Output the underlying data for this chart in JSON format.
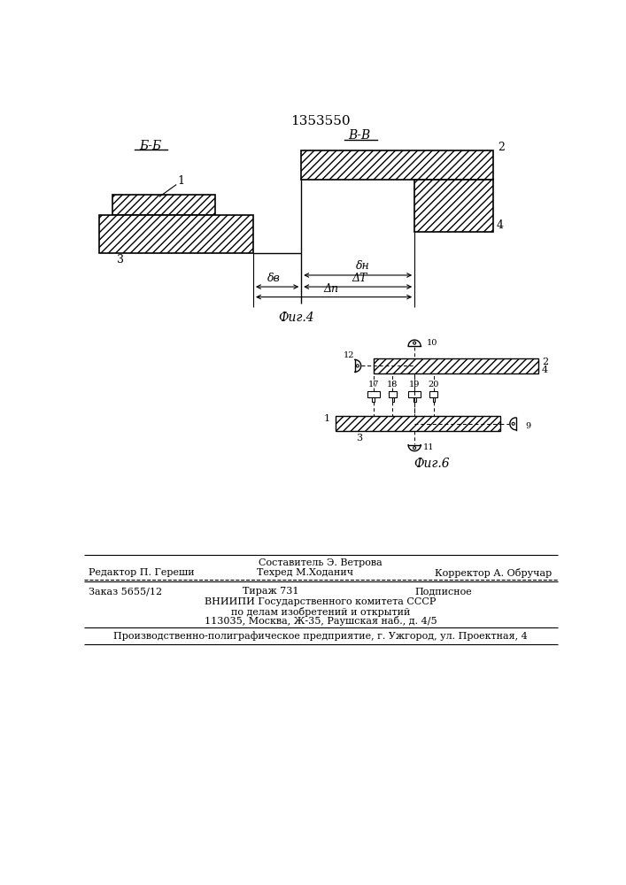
{
  "title": "1353550",
  "bg_color": "#ffffff",
  "fig4_label": "Фиг.4",
  "fig6_label": "Фиг.6",
  "bb_label": "Б-Б",
  "vv_label": "В-В"
}
